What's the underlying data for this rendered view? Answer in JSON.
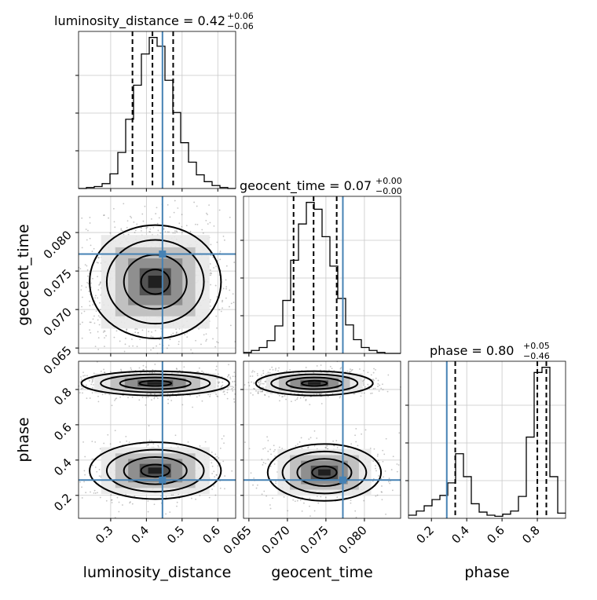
{
  "chart_data": {
    "type": "corner",
    "parameters": [
      "luminosity_distance",
      "geocent_time",
      "phase"
    ],
    "titles": [
      {
        "param": "luminosity_distance",
        "prefix": "luminosity_distance = ",
        "median": "0.42",
        "plus": "+0.06",
        "minus": "−0.06"
      },
      {
        "param": "geocent_time",
        "prefix": "geocent_time = ",
        "median": "0.07",
        "plus": "+0.00",
        "minus": "−0.00"
      },
      {
        "param": "phase",
        "prefix": "phase = ",
        "median": "0.80",
        "plus": "+0.05",
        "minus": "−0.46"
      }
    ],
    "axes": {
      "luminosity_distance": {
        "range": [
          0.21,
          0.65
        ],
        "ticks": [
          0.3,
          0.4,
          0.5,
          0.6
        ],
        "tick_labels": [
          "0.3",
          "0.4",
          "0.5",
          "0.6"
        ],
        "label": "luminosity_distance"
      },
      "geocent_time": {
        "range": [
          0.0643,
          0.0847
        ],
        "ticks": [
          0.065,
          0.07,
          0.075,
          0.08
        ],
        "tick_labels": [
          "0.065",
          "0.070",
          "0.075",
          "0.080"
        ],
        "label": "geocent_time"
      },
      "phase": {
        "range": [
          0.07,
          0.96
        ],
        "ticks": [
          0.2,
          0.4,
          0.6,
          0.8
        ],
        "tick_labels": [
          "0.2",
          "0.4",
          "0.6",
          "0.8"
        ],
        "label": "phase"
      }
    },
    "truth": {
      "luminosity_distance": 0.445,
      "geocent_time": 0.0772,
      "phase": 0.287
    },
    "histograms": {
      "luminosity_distance": {
        "bin_edges": [
          0.21,
          0.232,
          0.254,
          0.276,
          0.298,
          0.32,
          0.342,
          0.364,
          0.386,
          0.408,
          0.43,
          0.452,
          0.474,
          0.496,
          0.518,
          0.54,
          0.562,
          0.584,
          0.606,
          0.628,
          0.65
        ],
        "counts": [
          0,
          1,
          2,
          5,
          15,
          37,
          71,
          106,
          138,
          155,
          146,
          111,
          78,
          47,
          27,
          14,
          7,
          3,
          1,
          0
        ],
        "quantiles": [
          0.361,
          0.417,
          0.475
        ]
      },
      "geocent_time": {
        "bin_edges": [
          0.0643,
          0.06532,
          0.06634,
          0.06736,
          0.06838,
          0.0694,
          0.07042,
          0.07144,
          0.07246,
          0.07348,
          0.0745,
          0.07552,
          0.07654,
          0.07756,
          0.07858,
          0.0796,
          0.08062,
          0.08164,
          0.08266,
          0.08368,
          0.0847
        ],
        "counts": [
          1,
          3,
          6,
          13,
          28,
          54,
          95,
          132,
          154,
          147,
          119,
          89,
          56,
          29,
          14,
          6,
          3,
          1,
          0,
          0
        ],
        "quantiles": [
          0.0708,
          0.0734,
          0.0764
        ]
      },
      "phase": {
        "bin_edges": [
          0.07,
          0.1145,
          0.159,
          0.2035,
          0.248,
          0.2925,
          0.337,
          0.3815,
          0.426,
          0.4705,
          0.515,
          0.5595,
          0.604,
          0.6485,
          0.693,
          0.7375,
          0.782,
          0.8265,
          0.871,
          0.9155,
          0.96
        ],
        "counts": [
          3,
          7,
          12,
          18,
          22,
          34,
          62,
          40,
          14,
          6,
          3,
          2,
          4,
          7,
          21,
          78,
          140,
          145,
          40,
          5
        ],
        "quantiles": [
          0.335,
          0.8,
          0.851
        ]
      }
    },
    "contour_levels": [
      "0.5σ",
      "1σ",
      "1.5σ",
      "2σ"
    ],
    "colors": {
      "truth": "#4682b4",
      "hist": "#000000",
      "grid": "#c8c8c8",
      "points": "#555555"
    }
  }
}
